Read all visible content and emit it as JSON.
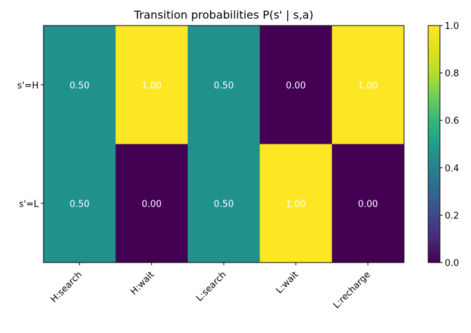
{
  "chart_data": {
    "type": "heatmap",
    "title": "Transition probabilities P(s' | s,a)",
    "x_categories": [
      "H:search",
      "H:wait",
      "L:search",
      "L:wait",
      "L:recharge"
    ],
    "y_categories": [
      "s'=H",
      "s'=L"
    ],
    "values": [
      [
        0.5,
        1.0,
        0.5,
        0.0,
        1.0
      ],
      [
        0.5,
        0.0,
        0.5,
        1.0,
        0.0
      ]
    ],
    "cell_labels": [
      [
        "0.50",
        "1.00",
        "0.50",
        "0.00",
        "1.00"
      ],
      [
        "0.50",
        "0.00",
        "0.50",
        "1.00",
        "0.00"
      ]
    ],
    "colormap": "viridis",
    "colorbar": {
      "range": [
        0.0,
        1.0
      ],
      "ticks": [
        0.0,
        0.2,
        0.4,
        0.6,
        0.8,
        1.0
      ],
      "tick_labels": [
        "0.0",
        "0.2",
        "0.4",
        "0.6",
        "0.8",
        "1.0"
      ]
    },
    "colors": {
      "low": "#440154",
      "mid": "#21918c",
      "high": "#fde725"
    },
    "grid": false,
    "x_tick_rotation_deg": 45
  }
}
